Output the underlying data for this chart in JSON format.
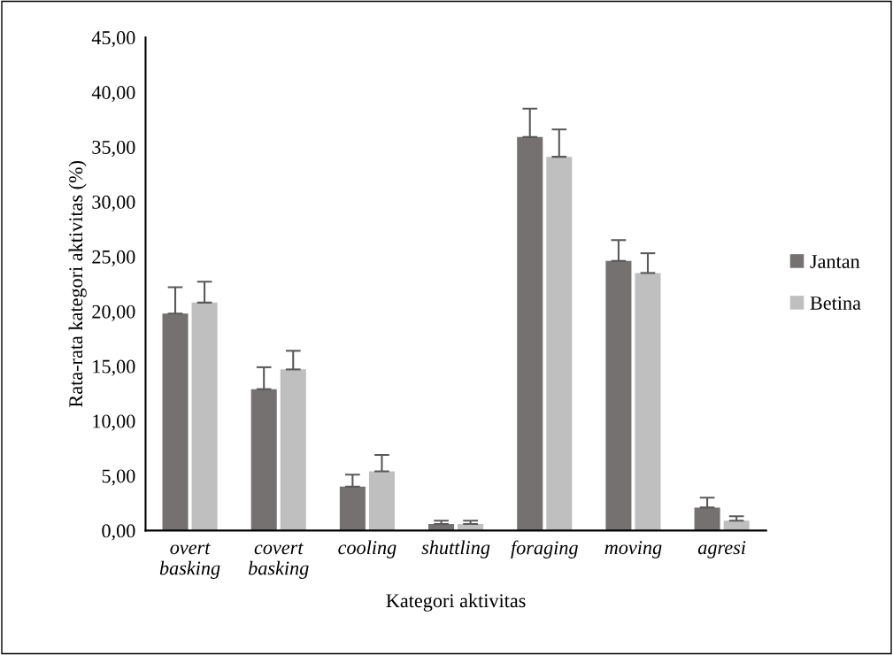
{
  "chart_data": {
    "type": "bar",
    "xlabel": "Kategori aktivitas",
    "ylabel": "Rata-rata kategori aktivitas (%)",
    "categories": [
      "overt\nbasking",
      "covert\nbasking",
      "cooling",
      "shuttling",
      "foraging",
      "moving",
      "agresi"
    ],
    "series": [
      {
        "name": "Jantan",
        "color": "#767171",
        "values": [
          19.8,
          12.9,
          4.0,
          0.6,
          35.9,
          24.6,
          2.1
        ],
        "errors": [
          [
            19.8,
            22.2
          ],
          [
            12.9,
            14.9
          ],
          [
            4.0,
            5.1
          ],
          [
            0.6,
            0.9
          ],
          [
            35.9,
            38.5
          ],
          [
            24.6,
            26.5
          ],
          [
            2.1,
            3.0
          ]
        ]
      },
      {
        "name": "Betina",
        "color": "#bfbfbf",
        "values": [
          20.8,
          14.7,
          5.4,
          0.6,
          34.1,
          23.5,
          0.9
        ],
        "errors": [
          [
            20.8,
            22.7
          ],
          [
            14.7,
            16.4
          ],
          [
            5.4,
            6.9
          ],
          [
            0.6,
            0.9
          ],
          [
            34.1,
            36.6
          ],
          [
            23.5,
            25.3
          ],
          [
            0.9,
            1.3
          ]
        ]
      }
    ],
    "ylim": [
      0,
      45
    ],
    "yticks": [
      {
        "value": 0,
        "label": "0,00"
      },
      {
        "value": 5,
        "label": "5,00"
      },
      {
        "value": 10,
        "label": "10,00"
      },
      {
        "value": 15,
        "label": "15,00"
      },
      {
        "value": 20,
        "label": "20,00"
      },
      {
        "value": 25,
        "label": "25,00"
      },
      {
        "value": 30,
        "label": "30,00"
      },
      {
        "value": 35,
        "label": "35,00"
      },
      {
        "value": 40,
        "label": "40,00"
      },
      {
        "value": 45,
        "label": "45,00"
      }
    ],
    "grid": false,
    "legend": "right"
  }
}
